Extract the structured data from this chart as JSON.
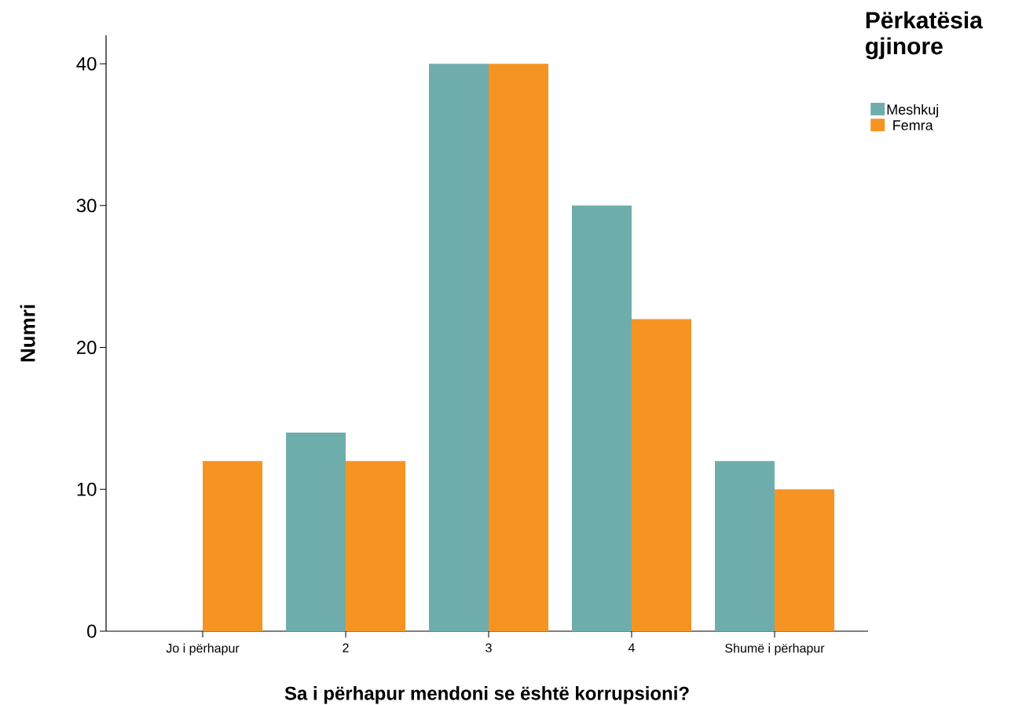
{
  "chart_data": {
    "type": "bar",
    "xlabel": "Sa i përhapur mendoni se është korrupsioni?",
    "ylabel": "Numri",
    "legend_title": "Përkatësia gjinore",
    "categories": [
      "Jo i përhapur",
      "2",
      "3",
      "4",
      "Shumë i përhapur"
    ],
    "series": [
      {
        "name": "Meshkuj",
        "color": "#6fadac",
        "values": [
          0,
          14,
          40,
          30,
          12
        ]
      },
      {
        "name": "Femra",
        "color": "#f59422",
        "values": [
          12,
          12,
          40,
          22,
          10
        ]
      }
    ],
    "ylim": [
      0,
      42
    ],
    "yticks": [
      0,
      10,
      20,
      30,
      40
    ],
    "legend": "top right",
    "grid": false
  }
}
